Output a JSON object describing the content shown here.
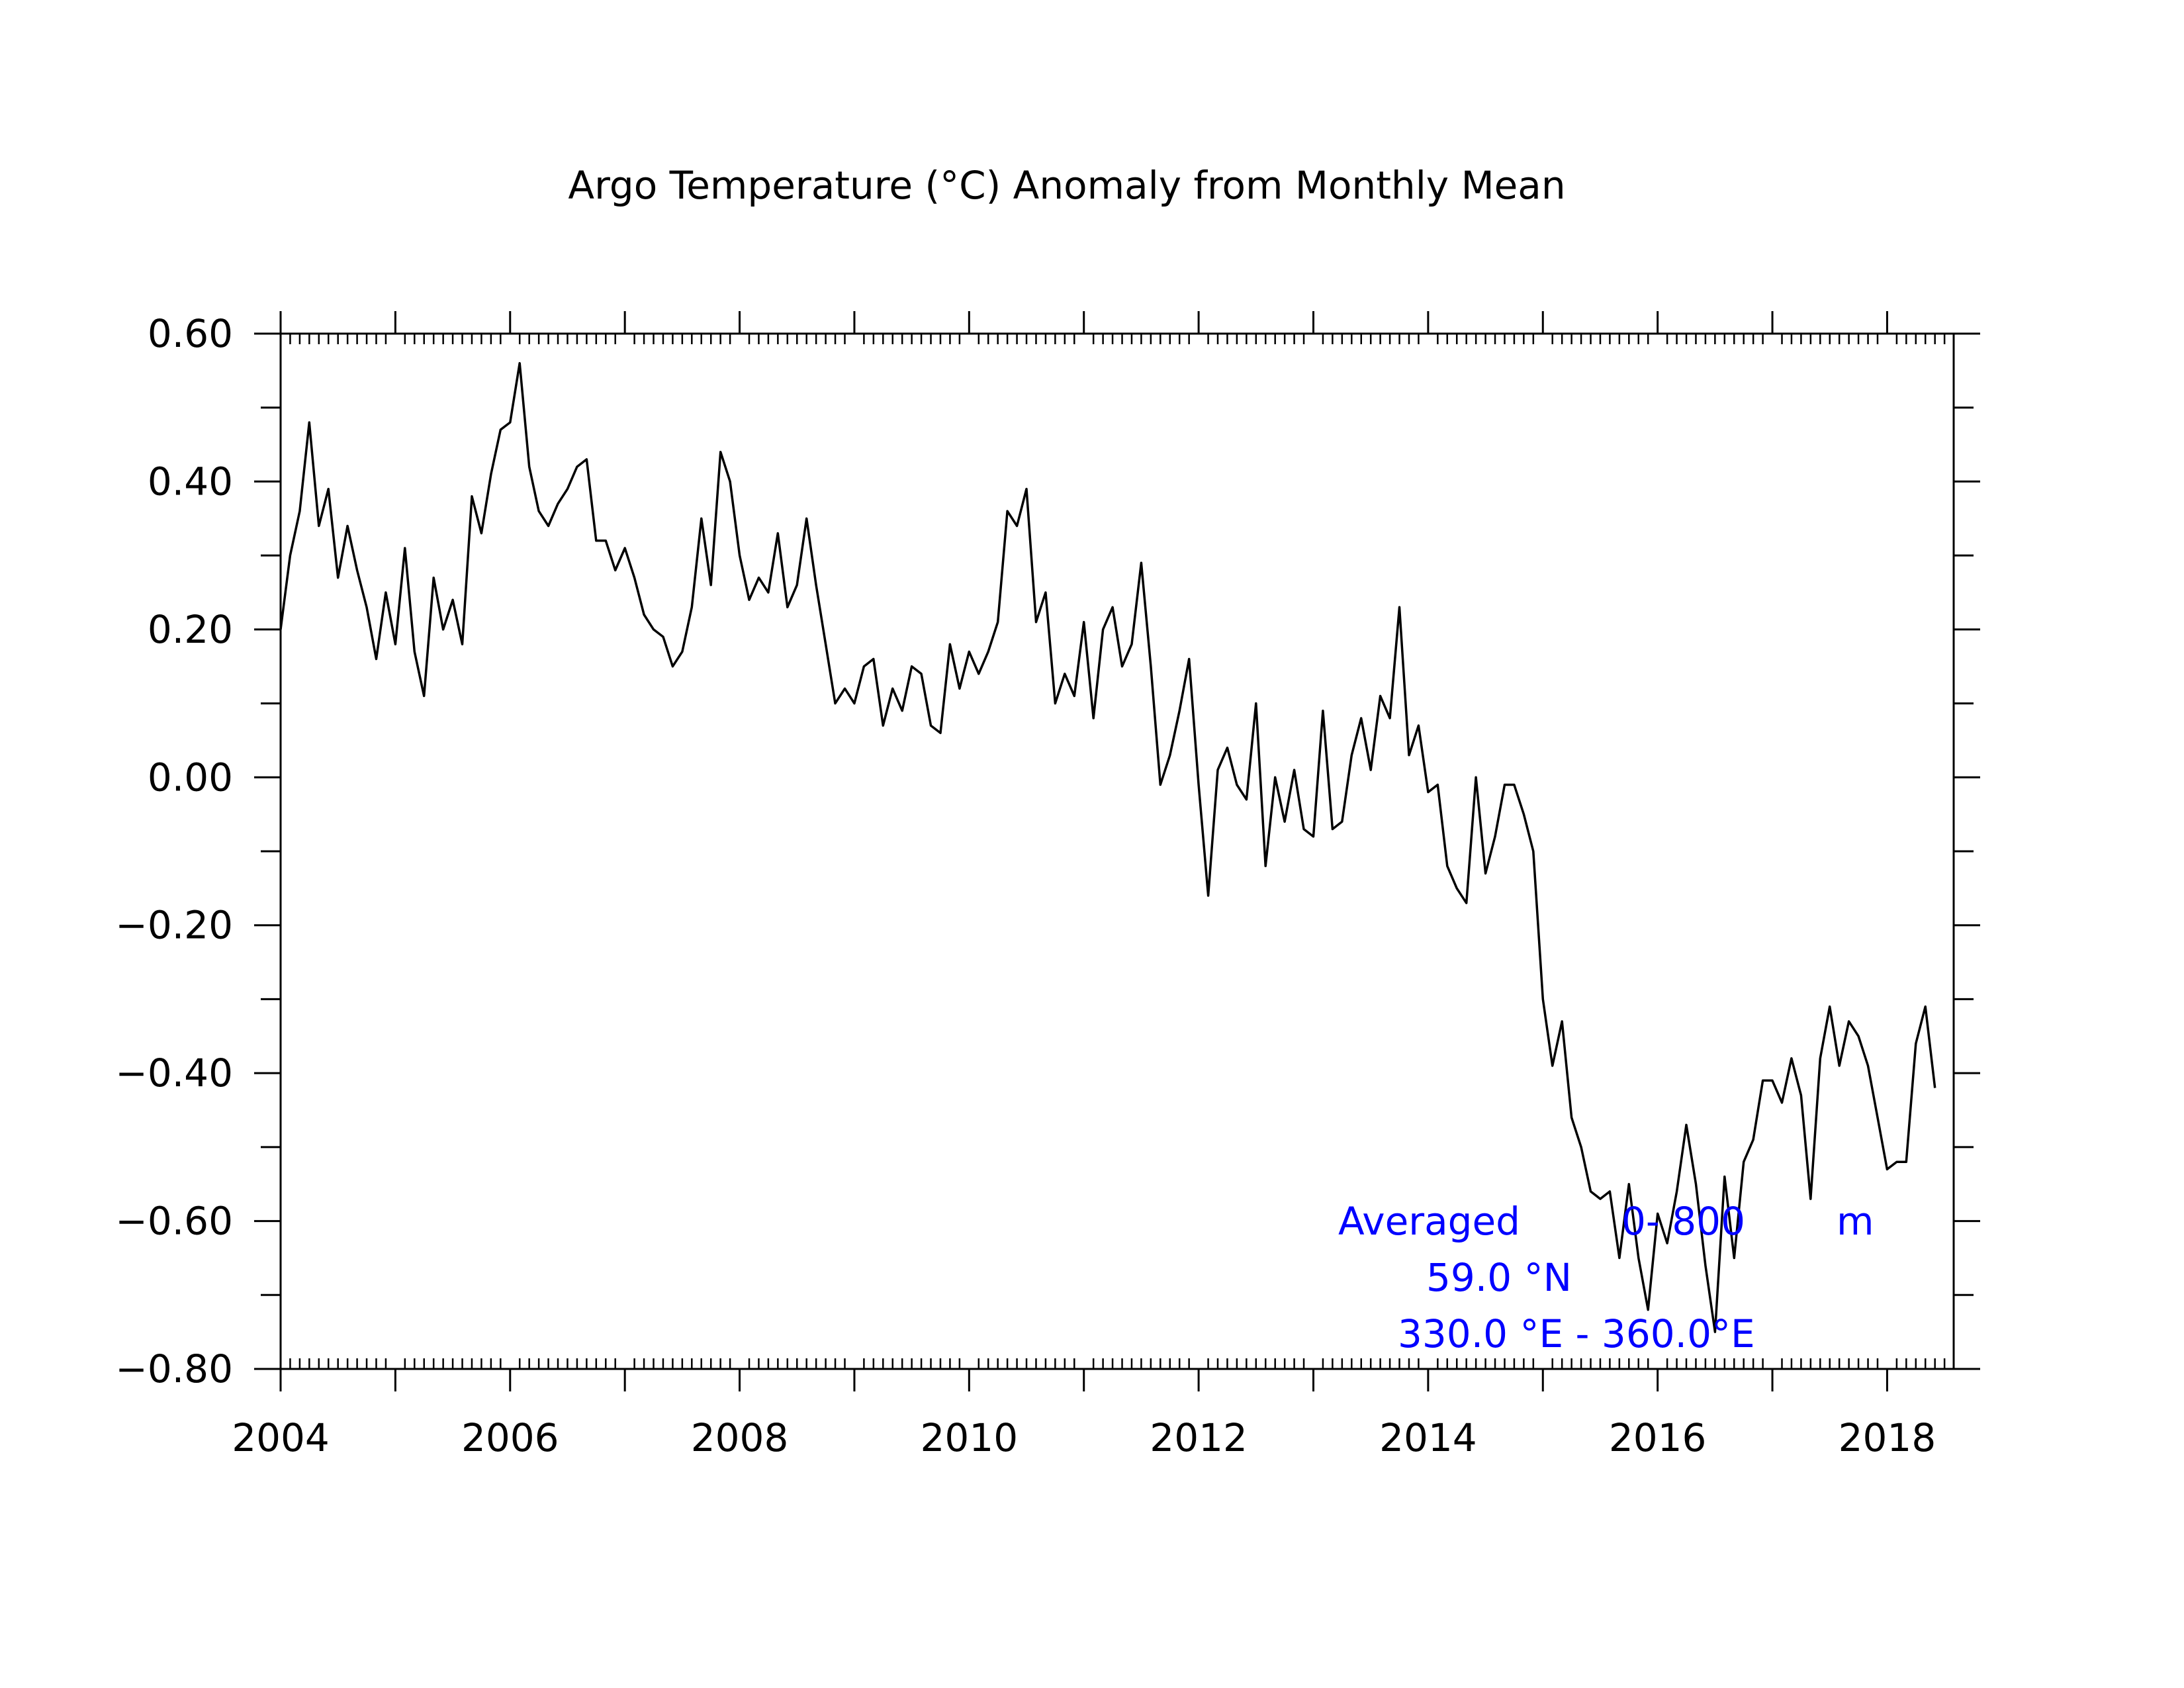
{
  "chart_data": {
    "type": "line",
    "title": "Argo Temperature (°C) Anomaly from Monthly Mean",
    "xlabel": "",
    "ylabel": "",
    "xlim": [
      2004.0,
      2018.58
    ],
    "ylim": [
      -0.8,
      0.6
    ],
    "x_ticks": [
      "2004",
      "2006",
      "2008",
      "2010",
      "2012",
      "2014",
      "2016",
      "2018"
    ],
    "y_ticks": [
      "0.60",
      "0.40",
      "0.20",
      "0.00",
      "−0.20",
      "−0.40",
      "−0.60",
      "−0.80"
    ],
    "grid": false,
    "line_color": "#000000",
    "annotation_color": "#0000ff",
    "annotations": [
      {
        "label": "Averaged",
        "depth": "0- 800",
        "unit": "m"
      },
      {
        "text": "59.0 °N"
      },
      {
        "text": "330.0 °E - 360.0°E"
      }
    ],
    "series": [
      {
        "x_start": "2004-01",
        "x_step": "monthly",
        "values": [
          0.2,
          0.3,
          0.36,
          0.48,
          0.34,
          0.39,
          0.27,
          0.34,
          0.28,
          0.23,
          0.16,
          0.25,
          0.18,
          0.31,
          0.17,
          0.11,
          0.27,
          0.2,
          0.24,
          0.18,
          0.38,
          0.33,
          0.41,
          0.47,
          0.48,
          0.56,
          0.42,
          0.36,
          0.34,
          0.37,
          0.39,
          0.42,
          0.43,
          0.32,
          0.32,
          0.28,
          0.31,
          0.27,
          0.22,
          0.2,
          0.19,
          0.15,
          0.17,
          0.23,
          0.35,
          0.26,
          0.44,
          0.4,
          0.3,
          0.24,
          0.27,
          0.25,
          0.33,
          0.23,
          0.26,
          0.35,
          0.26,
          0.18,
          0.1,
          0.12,
          0.1,
          0.15,
          0.16,
          0.07,
          0.12,
          0.09,
          0.15,
          0.14,
          0.07,
          0.06,
          0.18,
          0.12,
          0.17,
          0.14,
          0.17,
          0.21,
          0.36,
          0.34,
          0.39,
          0.21,
          0.25,
          0.1,
          0.14,
          0.11,
          0.21,
          0.08,
          0.2,
          0.23,
          0.15,
          0.18,
          0.29,
          0.15,
          -0.01,
          0.03,
          0.09,
          0.16,
          -0.01,
          -0.16,
          0.01,
          0.04,
          -0.01,
          -0.03,
          0.1,
          -0.12,
          0.0,
          -0.06,
          0.01,
          -0.07,
          -0.08,
          0.09,
          -0.07,
          -0.06,
          0.03,
          0.08,
          0.01,
          0.11,
          0.08,
          0.23,
          0.03,
          0.07,
          -0.02,
          -0.01,
          -0.12,
          -0.15,
          -0.17,
          0.0,
          -0.13,
          -0.08,
          -0.01,
          -0.01,
          -0.05,
          -0.1,
          -0.3,
          -0.39,
          -0.33,
          -0.46,
          -0.5,
          -0.56,
          -0.57,
          -0.56,
          -0.65,
          -0.55,
          -0.65,
          -0.72,
          -0.59,
          -0.63,
          -0.56,
          -0.47,
          -0.55,
          -0.66,
          -0.75,
          -0.54,
          -0.65,
          -0.52,
          -0.49,
          -0.41,
          -0.41,
          -0.44,
          -0.38,
          -0.43,
          -0.57,
          -0.38,
          -0.31,
          -0.39,
          -0.33,
          -0.35,
          -0.39,
          -0.46,
          -0.53,
          -0.52,
          -0.52,
          -0.36,
          -0.31,
          -0.42
        ]
      }
    ]
  }
}
